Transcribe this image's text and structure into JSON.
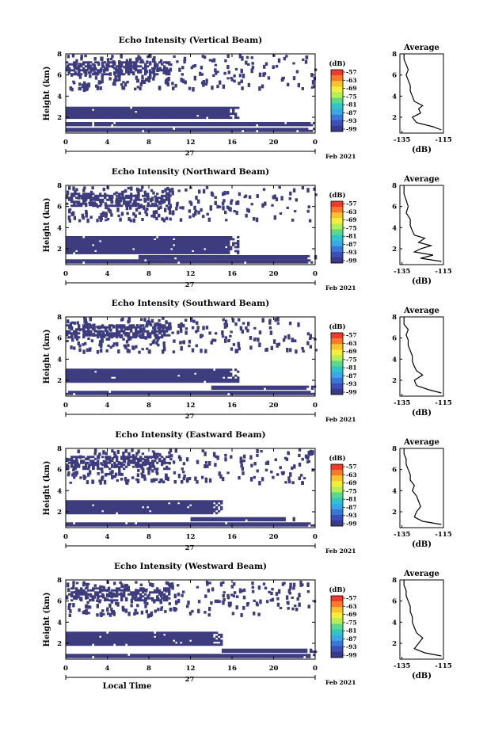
{
  "figure": {
    "xlabel": "Local Time",
    "date_day": "27",
    "date_tail": "Feb 2021"
  },
  "colorbar": {
    "unit": "(dB)",
    "ticks": [
      "-57",
      "-63",
      "-69",
      "-75",
      "-81",
      "-87",
      "-93",
      "-99"
    ],
    "colors": [
      "#f03a2a",
      "#f77b2a",
      "#fac22c",
      "#f3ef3a",
      "#b6ef55",
      "#5cd88a",
      "#2fc6c9",
      "#3aa8e8",
      "#3a78d8",
      "#3a4fb8",
      "#3a3a8a"
    ]
  },
  "colors": {
    "echo": "#3d3c7e",
    "line": "#000000"
  },
  "chart_data": [
    {
      "type": "heatmap",
      "title": "Echo Intensity (Vertical Beam)",
      "ylabel": "Height (km)",
      "xlim": [
        0,
        24
      ],
      "ylim": [
        0.5,
        8
      ],
      "xticks": [
        "0",
        "4",
        "8",
        "12",
        "16",
        "20",
        "0"
      ],
      "yticks": [
        "2",
        "4",
        "6",
        "8"
      ],
      "bands": [
        {
          "hmin": 0.7,
          "hmax": 1.0,
          "t0": 0,
          "t1": 24
        },
        {
          "hmin": 1.2,
          "hmax": 1.55,
          "t0": 0,
          "t1": 24
        },
        {
          "hmin": 1.9,
          "hmax": 3.0,
          "t0": 0,
          "t1": 16.5
        },
        {
          "hmin": 6.0,
          "hmax": 7.3,
          "t0": 0,
          "t1": 10
        }
      ],
      "average": {
        "title": "Average",
        "xlabel": "(dB)",
        "xlim": [
          -136,
          -115
        ],
        "xticks": [
          "-135",
          "-115"
        ],
        "yticks": [
          "2",
          "4",
          "6",
          "8"
        ],
        "height": [
          0.8,
          1.1,
          1.5,
          2.0,
          2.4,
          2.8,
          3.1,
          3.5,
          4.0,
          4.5,
          5.0,
          5.5,
          6.0,
          6.5,
          7.0,
          7.5,
          8.0
        ],
        "db": [
          -116,
          -120,
          -128,
          -130,
          -126,
          -127,
          -125,
          -129,
          -130,
          -131,
          -131,
          -132,
          -133,
          -132,
          -133,
          -134,
          -134
        ]
      }
    },
    {
      "type": "heatmap",
      "title": "Echo Intensity (Northward Beam)",
      "ylabel": "Height (km)",
      "xlim": [
        0,
        24
      ],
      "ylim": [
        0.5,
        8
      ],
      "xticks": [
        "0",
        "4",
        "8",
        "12",
        "16",
        "20",
        "0"
      ],
      "yticks": [
        "2",
        "4",
        "6",
        "8"
      ],
      "bands": [
        {
          "hmin": 0.7,
          "hmax": 1.0,
          "t0": 0,
          "t1": 24
        },
        {
          "hmin": 1.2,
          "hmax": 1.4,
          "t0": 7,
          "t1": 24
        },
        {
          "hmin": 1.6,
          "hmax": 3.2,
          "t0": 0,
          "t1": 16.5
        },
        {
          "hmin": 6.0,
          "hmax": 7.3,
          "t0": 0,
          "t1": 10
        }
      ],
      "average": {
        "title": "Average",
        "xlabel": "(dB)",
        "xlim": [
          -136,
          -115
        ],
        "xticks": [
          "-135",
          "-115"
        ],
        "yticks": [
          "2",
          "4",
          "6",
          "8"
        ],
        "height": [
          0.8,
          1.1,
          1.4,
          1.7,
          2.0,
          2.3,
          2.6,
          3.0,
          3.3,
          3.7,
          4.2,
          4.8,
          5.4,
          6.0,
          6.6,
          7.2,
          8.0
        ],
        "db": [
          -116,
          -126,
          -120,
          -129,
          -126,
          -121,
          -127,
          -124,
          -129,
          -130,
          -131,
          -131,
          -133,
          -132,
          -133,
          -134,
          -134
        ]
      }
    },
    {
      "type": "heatmap",
      "title": "Echo Intensity (Southward Beam)",
      "ylabel": "Height (km)",
      "xlim": [
        0,
        24
      ],
      "ylim": [
        0.5,
        8
      ],
      "xticks": [
        "0",
        "4",
        "8",
        "12",
        "16",
        "20",
        "0"
      ],
      "yticks": [
        "2",
        "4",
        "6",
        "8"
      ],
      "bands": [
        {
          "hmin": 0.7,
          "hmax": 1.0,
          "t0": 0,
          "t1": 24
        },
        {
          "hmin": 1.2,
          "hmax": 1.5,
          "t0": 14,
          "t1": 24
        },
        {
          "hmin": 1.8,
          "hmax": 3.1,
          "t0": 0,
          "t1": 16.5
        },
        {
          "hmin": 6.0,
          "hmax": 7.3,
          "t0": 0,
          "t1": 10
        }
      ],
      "average": {
        "title": "Average",
        "xlabel": "(dB)",
        "xlim": [
          -136,
          -115
        ],
        "xticks": [
          "-135",
          "-115"
        ],
        "yticks": [
          "2",
          "4",
          "6",
          "8"
        ],
        "height": [
          0.8,
          1.1,
          1.5,
          2.0,
          2.5,
          2.9,
          3.3,
          3.8,
          4.3,
          4.8,
          5.3,
          5.8,
          6.3,
          6.8,
          7.3,
          8.0
        ],
        "db": [
          -116,
          -122,
          -128,
          -129,
          -125,
          -128,
          -129,
          -130,
          -130,
          -131,
          -132,
          -132,
          -133,
          -132,
          -134,
          -134
        ]
      }
    },
    {
      "type": "heatmap",
      "title": "Echo Intensity (Eastward Beam)",
      "ylabel": "Height (km)",
      "xlim": [
        0,
        24
      ],
      "ylim": [
        0.5,
        8
      ],
      "xticks": [
        "0",
        "4",
        "8",
        "12",
        "16",
        "20",
        "0"
      ],
      "yticks": [
        "2",
        "4",
        "6",
        "8"
      ],
      "bands": [
        {
          "hmin": 0.7,
          "hmax": 1.0,
          "t0": 0,
          "t1": 24
        },
        {
          "hmin": 1.2,
          "hmax": 1.5,
          "t0": 12,
          "t1": 22
        },
        {
          "hmin": 1.9,
          "hmax": 3.1,
          "t0": 0,
          "t1": 15
        },
        {
          "hmin": 6.0,
          "hmax": 7.3,
          "t0": 0,
          "t1": 10
        }
      ],
      "average": {
        "title": "Average",
        "xlabel": "(dB)",
        "xlim": [
          -136,
          -115
        ],
        "xticks": [
          "-135",
          "-115"
        ],
        "yticks": [
          "2",
          "4",
          "6",
          "8"
        ],
        "height": [
          0.8,
          1.1,
          1.5,
          2.0,
          2.5,
          3.0,
          3.5,
          4.0,
          4.5,
          5.0,
          5.5,
          6.0,
          6.5,
          7.0,
          7.5,
          8.0
        ],
        "db": [
          -116,
          -125,
          -129,
          -128,
          -126,
          -127,
          -128,
          -130,
          -129,
          -131,
          -131,
          -132,
          -133,
          -133,
          -134,
          -134
        ]
      }
    },
    {
      "type": "heatmap",
      "title": "Echo Intensity (Westward Beam)",
      "ylabel": "Height (km)",
      "xlim": [
        0,
        24
      ],
      "ylim": [
        0.5,
        8
      ],
      "xticks": [
        "0",
        "4",
        "8",
        "12",
        "16",
        "20",
        "0"
      ],
      "yticks": [
        "2",
        "4",
        "6",
        "8"
      ],
      "bands": [
        {
          "hmin": 0.7,
          "hmax": 1.0,
          "t0": 0,
          "t1": 24
        },
        {
          "hmin": 1.2,
          "hmax": 1.5,
          "t0": 15,
          "t1": 24
        },
        {
          "hmin": 1.9,
          "hmax": 3.1,
          "t0": 0,
          "t1": 15
        },
        {
          "hmin": 6.0,
          "hmax": 7.3,
          "t0": 0,
          "t1": 10
        }
      ],
      "average": {
        "title": "Average",
        "xlabel": "(dB)",
        "xlim": [
          -136,
          -115
        ],
        "xticks": [
          "-135",
          "-115"
        ],
        "yticks": [
          "2",
          "4",
          "6",
          "8"
        ],
        "height": [
          0.8,
          1.1,
          1.5,
          2.0,
          2.5,
          3.0,
          3.5,
          4.0,
          4.5,
          5.0,
          5.5,
          6.0,
          6.5,
          7.0,
          7.5,
          8.0
        ],
        "db": [
          -116,
          -124,
          -129,
          -127,
          -125,
          -128,
          -129,
          -130,
          -130,
          -131,
          -131,
          -132,
          -133,
          -133,
          -134,
          -134
        ]
      }
    }
  ]
}
